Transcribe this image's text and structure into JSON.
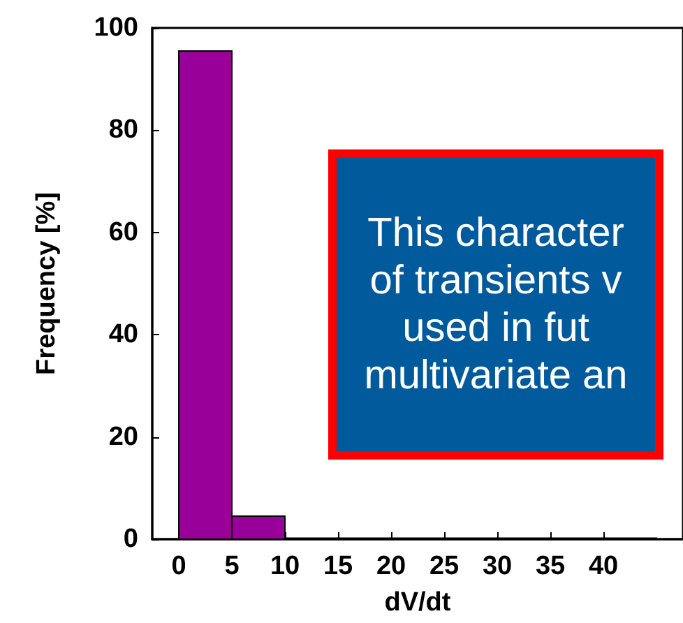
{
  "chart_data": {
    "type": "histogram",
    "xlabel": "dV/dt",
    "ylabel": "Frequency [%]",
    "bins": [
      0,
      5,
      10,
      15,
      20,
      25,
      30,
      35,
      40,
      45
    ],
    "values": [
      95.5,
      4.5,
      0.2,
      0.2,
      0.2,
      0.2,
      0.2,
      0.2,
      0.2
    ],
    "color": "#990099",
    "xlim": [
      -2.5,
      47.5
    ],
    "xticks": [
      0,
      5,
      10,
      15,
      20,
      25,
      30,
      35,
      40
    ],
    "ylim": [
      0,
      100
    ],
    "yticks": [
      0,
      20,
      40,
      60,
      80,
      100
    ],
    "grid": false,
    "annotations": [
      "This character\nof transients v\nused in fut\nmultivariate an"
    ]
  }
}
